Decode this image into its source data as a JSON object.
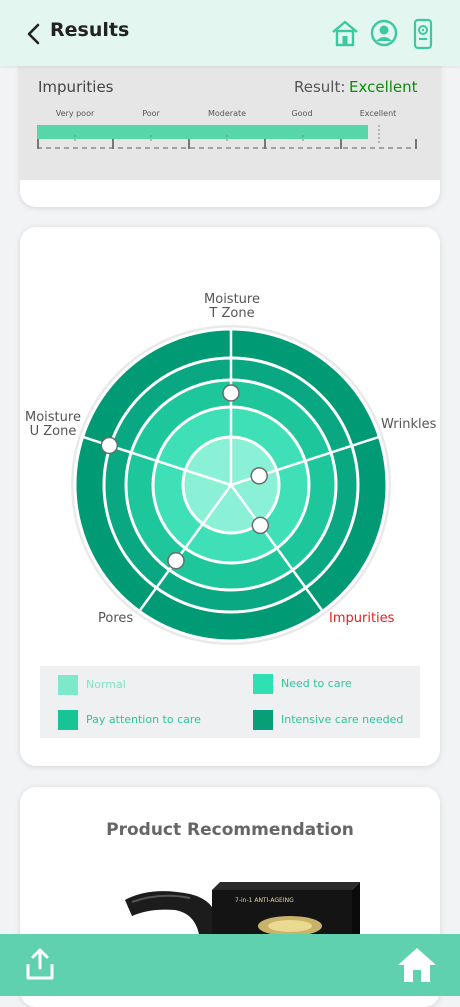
{
  "header": {
    "title": "Results"
  },
  "impurities_card": {
    "title": "Impurities",
    "result_label": "Result:",
    "result_value": "Excellent",
    "levels": [
      "Very poor",
      "Poor",
      "Moderate",
      "Good",
      "Excellent"
    ],
    "level_fraction": 0.87
  },
  "radar": {
    "categories": {
      "t_zone": "Moisture\nT Zone",
      "wrinkles": "Wrinkles",
      "impurities": "Impurities",
      "pores": "Pores",
      "u_zone": "Moisture\nU Zone"
    },
    "highlight_color": "#e02020",
    "ring_colors": [
      "#8af0d6",
      "#3fe0b8",
      "#1ec79b",
      "#0aa882",
      "#009a74"
    ],
    "point_levels": {
      "t_zone": 0.59,
      "wrinkles": 0.19,
      "impurities": 0.32,
      "pores": 0.6,
      "u_zone": 0.82
    }
  },
  "legend": {
    "normal": "Normal",
    "need_to_care": "Need to care",
    "pay_attention": "Pay attention to care",
    "intensive": "Intensive care needed",
    "colors": {
      "normal": "#7de8cc",
      "need_to_care": "#2fe0b3",
      "pay_attention": "#16c496",
      "intensive": "#079e78"
    },
    "normal_text_color": "#82e2c5",
    "text_color": "#2fc49a"
  },
  "recommendation": {
    "title": "Product Recommendation",
    "box_text": "7-in-1 ANTI-AGEING"
  }
}
